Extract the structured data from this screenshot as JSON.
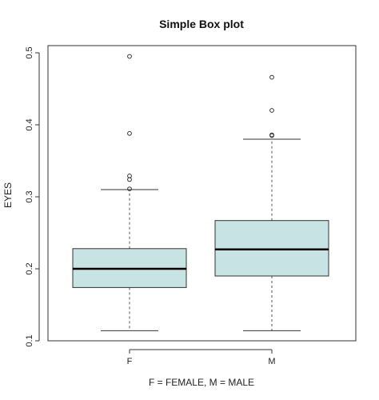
{
  "chart_data": {
    "type": "box",
    "title": "Simple Box plot",
    "xlabel": "F = FEMALE, M = MALE",
    "ylabel": "EYES",
    "ylim": [
      0.1,
      0.5
    ],
    "yticks": [
      "0.1",
      "0.2",
      "0.3",
      "0.4",
      "0.5"
    ],
    "categories": [
      "F",
      "M"
    ],
    "box_fill": "#c8e3e3",
    "boxes": [
      {
        "category": "F",
        "whisker_low": 0.114,
        "q1": 0.174,
        "median": 0.2,
        "q3": 0.228,
        "whisker_high": 0.31,
        "outliers": [
          0.311,
          0.324,
          0.329,
          0.388,
          0.495
        ]
      },
      {
        "category": "M",
        "whisker_low": 0.114,
        "q1": 0.19,
        "median": 0.227,
        "q3": 0.267,
        "whisker_high": 0.38,
        "outliers": [
          0.385,
          0.386,
          0.42,
          0.466
        ]
      }
    ]
  }
}
